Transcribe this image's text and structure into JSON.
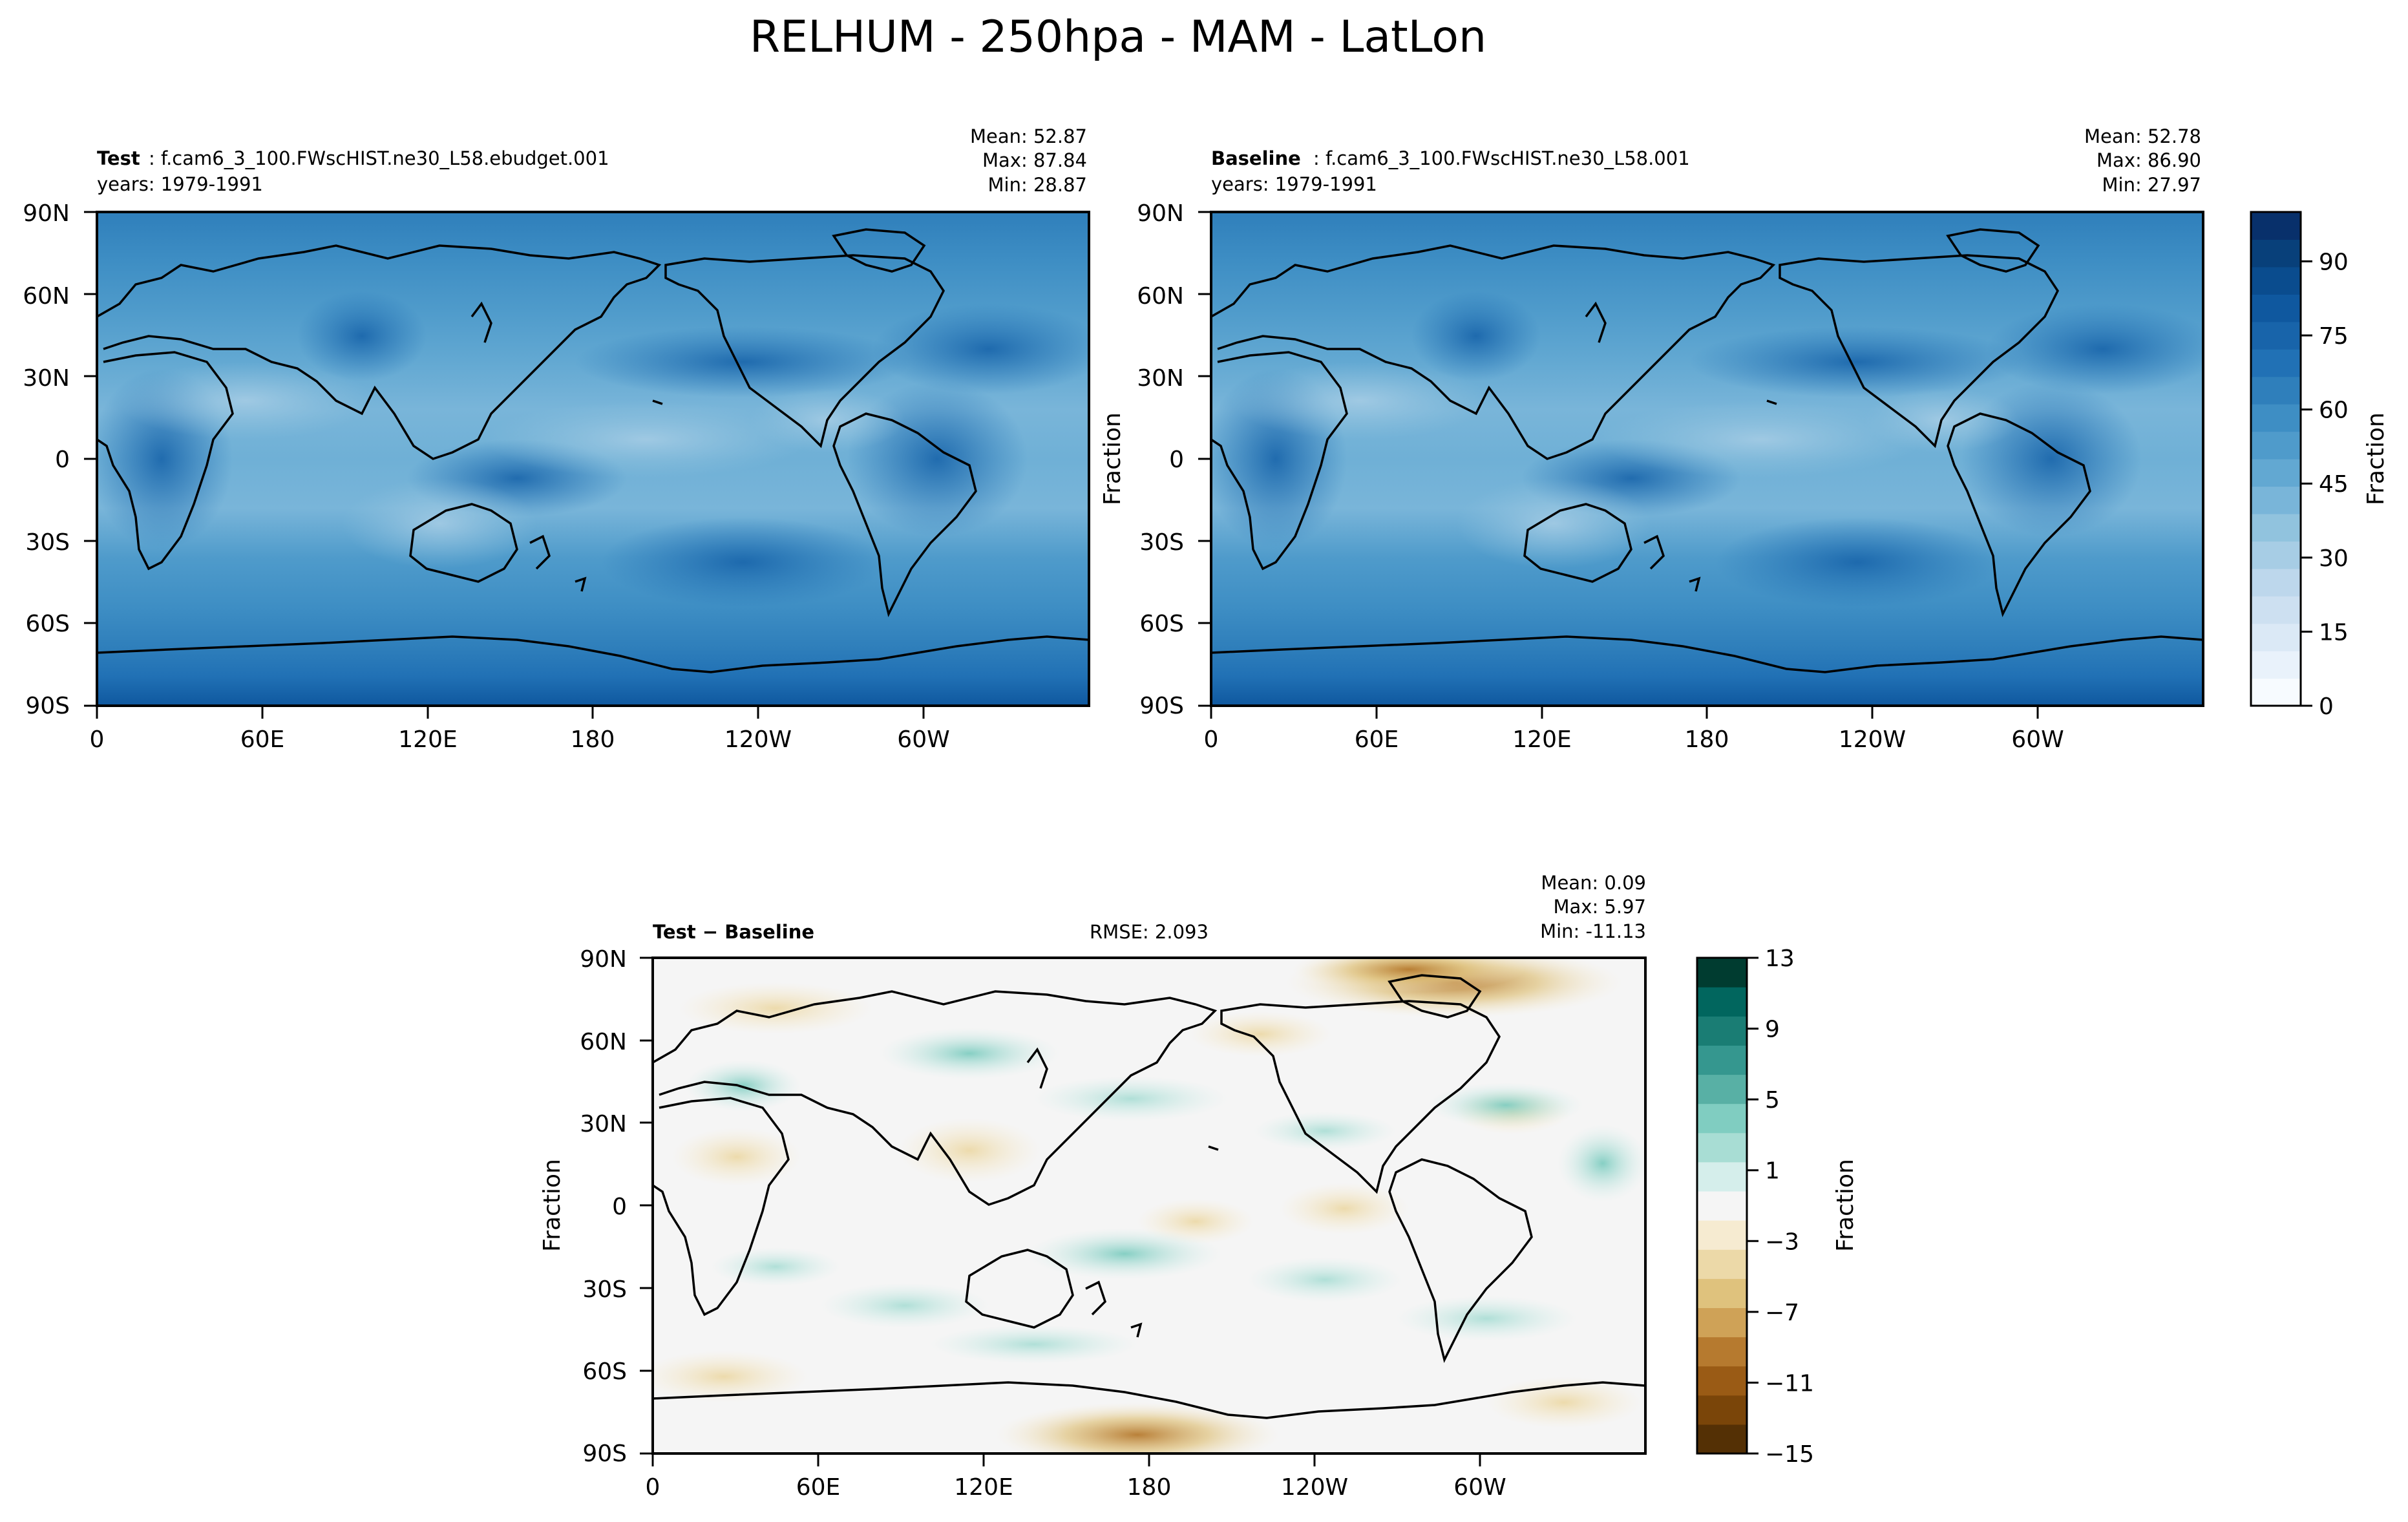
{
  "title": "RELHUM - 250hpa - MAM - LatLon",
  "lat_ticks": [
    "90N",
    "60N",
    "30N",
    "0",
    "30S",
    "60S",
    "90S"
  ],
  "lon_ticks": [
    "0",
    "60E",
    "120E",
    "180",
    "120W",
    "60W"
  ],
  "panels": [
    {
      "id": "test",
      "name_bold": "Test",
      "name_rest": ": f.cam6_3_100.FWscHIST.ne30_L58.ebudget.001",
      "years": "years: 1979-1991",
      "stats": [
        "Mean: 52.87",
        "Max: 87.84",
        "Min: 28.87"
      ],
      "ylabel": ""
    },
    {
      "id": "baseline",
      "name_bold": "Baseline",
      "name_rest": ": f.cam6_3_100.FWscHIST.ne30_L58.001",
      "years": "years: 1979-1991",
      "stats": [
        "Mean: 52.78",
        "Max: 86.90",
        "Min: 27.97"
      ],
      "ylabel": "Fraction"
    },
    {
      "id": "diff",
      "name_bold": "Test − Baseline",
      "name_rest": "",
      "years": "",
      "rmse": "RMSE: 2.093",
      "stats": [
        "Mean:  0.09",
        "Max:  5.97",
        "Min: -11.13"
      ],
      "ylabel": "Fraction"
    }
  ],
  "colorbars": [
    {
      "id": "abs",
      "label": "Fraction",
      "ticks": [
        "0",
        "15",
        "30",
        "45",
        "60",
        "75",
        "90"
      ],
      "tick_values": [
        0,
        15,
        30,
        45,
        60,
        75,
        90
      ],
      "range": [
        0,
        100
      ],
      "colors": [
        "#f7fbff",
        "#e9f2fb",
        "#dbe9f6",
        "#cde0f1",
        "#bdd7ec",
        "#a7cde5",
        "#91c3de",
        "#79b5d9",
        "#62a8d2",
        "#4f9bcb",
        "#3e8ec4",
        "#2f7fbb",
        "#2171b5",
        "#1864aa",
        "#0f589f",
        "#0a4c8e",
        "#08407a",
        "#08306b"
      ]
    },
    {
      "id": "diff",
      "label": "Fraction",
      "ticks": [
        "13",
        "9",
        "5",
        "1",
        "−3",
        "−7",
        "−11",
        "−15"
      ],
      "tick_values": [
        13,
        9,
        5,
        1,
        -3,
        -7,
        -11,
        -15
      ],
      "range": [
        -15,
        13
      ],
      "colors": [
        "#543005",
        "#7a4509",
        "#9a5b15",
        "#b67a2f",
        "#cfa257",
        "#dfc27d",
        "#ecd9a8",
        "#f6ebd1",
        "#f5f5f5",
        "#d5eeeb",
        "#a8ddd4",
        "#80cdc1",
        "#58b0a5",
        "#35978f",
        "#1a7d74",
        "#01665e",
        "#003c30"
      ]
    }
  ],
  "chart_data": [
    {
      "type": "heatmap",
      "panel": "Test",
      "variable": "RELHUM",
      "level": "250hpa",
      "season": "MAM",
      "mean": 52.87,
      "max": 87.84,
      "min": 28.87,
      "xlim": [
        0,
        360
      ],
      "ylim": [
        -90,
        90
      ],
      "colorbar_range": [
        0,
        100
      ]
    },
    {
      "type": "heatmap",
      "panel": "Baseline",
      "variable": "RELHUM",
      "level": "250hpa",
      "season": "MAM",
      "mean": 52.78,
      "max": 86.9,
      "min": 27.97,
      "xlim": [
        0,
        360
      ],
      "ylim": [
        -90,
        90
      ],
      "colorbar_range": [
        0,
        100
      ]
    },
    {
      "type": "heatmap",
      "panel": "Test − Baseline",
      "mean": 0.09,
      "max": 5.97,
      "min": -11.13,
      "rmse": 2.093,
      "xlim": [
        0,
        360
      ],
      "ylim": [
        -90,
        90
      ],
      "colorbar_range": [
        -15,
        13
      ]
    }
  ]
}
